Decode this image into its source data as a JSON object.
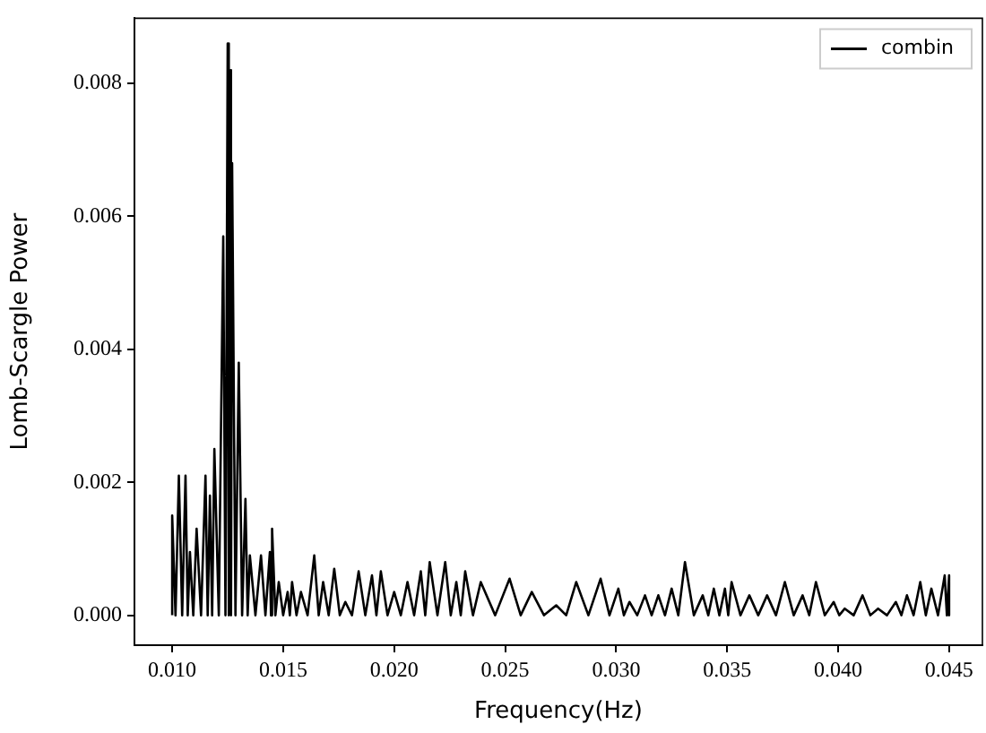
{
  "chart_data": {
    "type": "line",
    "xlabel": "Frequency(Hz)",
    "ylabel": "Lomb-Scargle Power",
    "legend": "top right",
    "marker": "none",
    "line_style": "solid",
    "grid": false,
    "xlim": [
      0.0083,
      0.0465
    ],
    "ylim": [
      -0.00045,
      0.00898
    ],
    "xticks": [
      {
        "value": 0.01,
        "label": "0.010"
      },
      {
        "value": 0.015,
        "label": "0.015"
      },
      {
        "value": 0.02,
        "label": "0.020"
      },
      {
        "value": 0.025,
        "label": "0.025"
      },
      {
        "value": 0.03,
        "label": "0.030"
      },
      {
        "value": 0.035,
        "label": "0.035"
      },
      {
        "value": 0.04,
        "label": "0.040"
      },
      {
        "value": 0.045,
        "label": "0.045"
      }
    ],
    "yticks": [
      {
        "value": 0,
        "label": "0.000"
      },
      {
        "value": 0.002,
        "label": "0.002"
      },
      {
        "value": 0.004,
        "label": "0.004"
      },
      {
        "value": 0.006,
        "label": "0.006"
      },
      {
        "value": 0.008,
        "label": "0.008"
      }
    ],
    "series": [
      {
        "name": "combin",
        "color": "#000000",
        "x": [
          0.01,
          0.01,
          0.01015,
          0.0103,
          0.01045,
          0.0106,
          0.0107,
          0.0108,
          0.01095,
          0.0111,
          0.0113,
          0.0115,
          0.0116,
          0.0117,
          0.0118,
          0.0119,
          0.0121,
          0.0123,
          0.0124,
          0.0125,
          0.01255,
          0.0126,
          0.01265,
          0.0127,
          0.01285,
          0.013,
          0.01315,
          0.0133,
          0.0134,
          0.0135,
          0.01375,
          0.014,
          0.0142,
          0.0144,
          0.01445,
          0.0145,
          0.01465,
          0.0148,
          0.015,
          0.0152,
          0.0153,
          0.0154,
          0.0156,
          0.0158,
          0.0161,
          0.0164,
          0.0166,
          0.0168,
          0.01705,
          0.0173,
          0.01755,
          0.0178,
          0.0181,
          0.0184,
          0.0187,
          0.019,
          0.0192,
          0.0194,
          0.0197,
          0.02,
          0.0203,
          0.0206,
          0.0209,
          0.0212,
          0.0214,
          0.0216,
          0.02195,
          0.0223,
          0.02255,
          0.0228,
          0.023,
          0.0232,
          0.02355,
          0.0239,
          0.02455,
          0.0252,
          0.0257,
          0.0262,
          0.02675,
          0.0273,
          0.02775,
          0.0282,
          0.02875,
          0.0293,
          0.0297,
          0.0301,
          0.03035,
          0.0306,
          0.03095,
          0.0313,
          0.0316,
          0.0319,
          0.0322,
          0.0325,
          0.0328,
          0.0331,
          0.0335,
          0.0339,
          0.03415,
          0.0344,
          0.03465,
          0.0349,
          0.03505,
          0.0352,
          0.0356,
          0.036,
          0.0364,
          0.0368,
          0.0372,
          0.0376,
          0.038,
          0.0384,
          0.0387,
          0.039,
          0.0394,
          0.0398,
          0.04005,
          0.0403,
          0.0407,
          0.0411,
          0.04145,
          0.0418,
          0.0422,
          0.0426,
          0.04285,
          0.0431,
          0.0434,
          0.0437,
          0.04395,
          0.0442,
          0.0445,
          0.0448,
          0.0449,
          0.045,
          0.045
        ],
        "values": [
          0,
          0.0015,
          0,
          0.0021,
          0,
          0.0021,
          0,
          0.00095,
          0,
          0.0013,
          0,
          0.0021,
          0,
          0.0018,
          0,
          0.0025,
          0,
          0.0057,
          0,
          0.0086,
          0,
          0.0082,
          0,
          0.0068,
          0,
          0.0038,
          0,
          0.00175,
          0,
          0.0009,
          0,
          0.0009,
          0,
          0.00095,
          0,
          0.0013,
          0,
          0.0005,
          0,
          0.00035,
          0,
          0.0005,
          0,
          0.00035,
          0,
          0.0009,
          0,
          0.0005,
          0,
          0.0007,
          0,
          0.0002,
          0,
          0.00066,
          0,
          0.0006,
          0,
          0.00066,
          0,
          0.00035,
          0,
          0.0005,
          0,
          0.00066,
          0,
          0.0008,
          0,
          0.0008,
          0,
          0.0005,
          0,
          0.00066,
          0,
          0.0005,
          0,
          0.00055,
          0,
          0.00035,
          0,
          0.00015,
          0,
          0.0005,
          0,
          0.00055,
          0,
          0.0004,
          0,
          0.0002,
          0,
          0.0003,
          0,
          0.0003,
          0,
          0.0004,
          0,
          0.0008,
          0,
          0.0003,
          0,
          0.0004,
          0,
          0.0004,
          0,
          0.0005,
          0,
          0.0003,
          0,
          0.0003,
          0,
          0.0005,
          0,
          0.0003,
          0,
          0.0005,
          0,
          0.0002,
          0,
          0.0001,
          0,
          0.0003,
          0,
          0.0001,
          0,
          0.0002,
          0,
          0.0003,
          0,
          0.0005,
          0,
          0.0004,
          0,
          0.0006,
          0,
          0.0006,
          0
        ]
      }
    ]
  }
}
